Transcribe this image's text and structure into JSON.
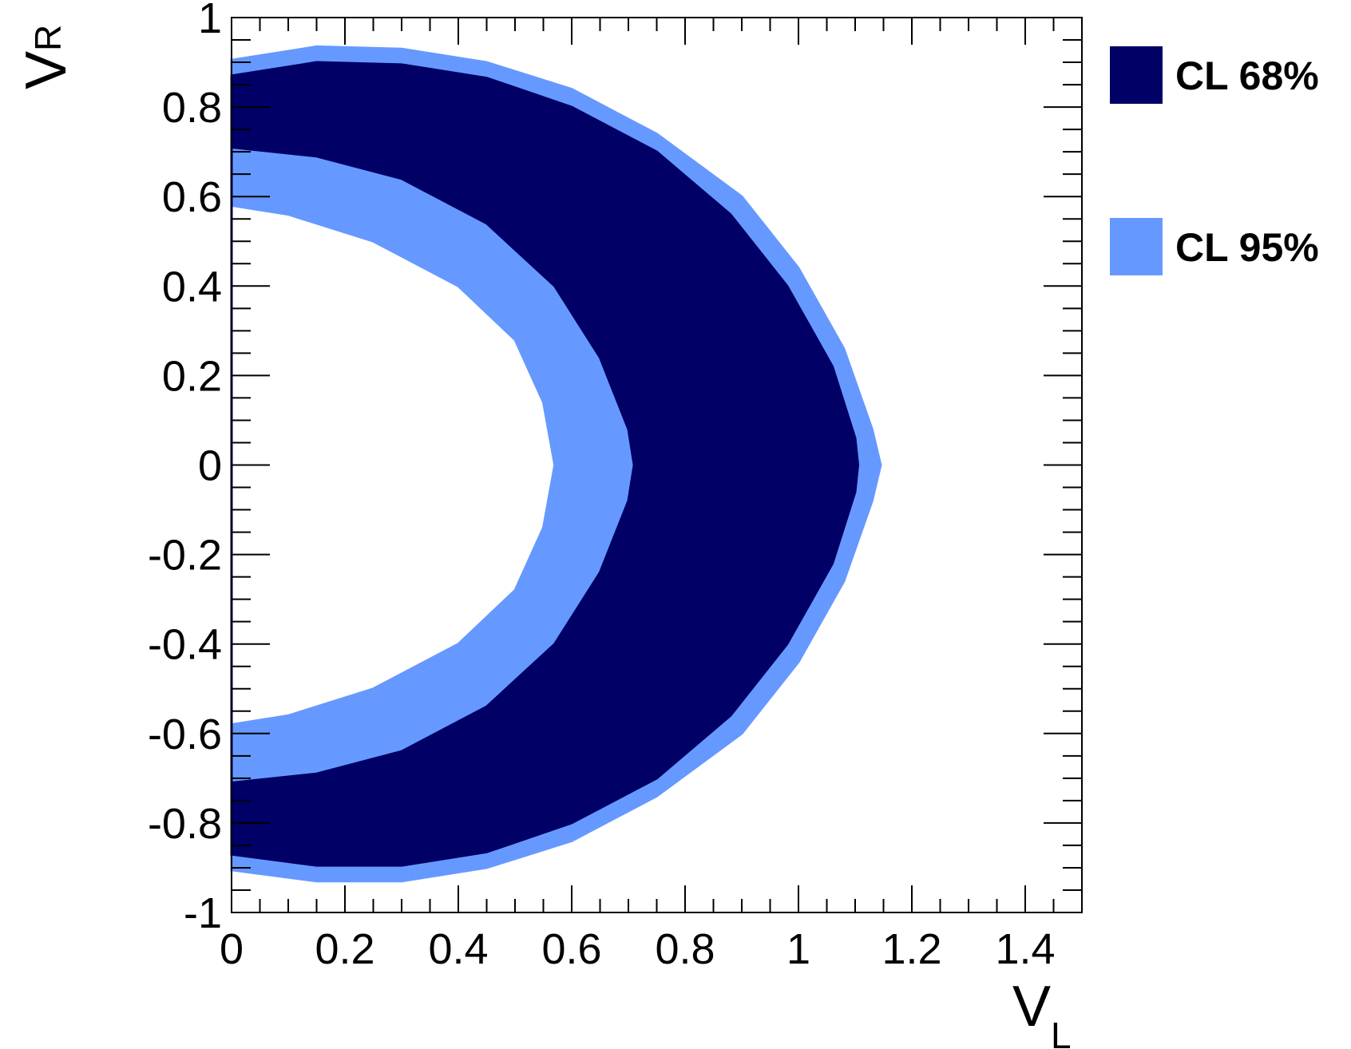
{
  "chart_data": {
    "type": "area",
    "xlabel": "V",
    "xlabel_sub": "L",
    "ylabel": "V",
    "ylabel_sub": "R",
    "xlim": [
      0,
      1.5
    ],
    "ylim": [
      -1,
      1
    ],
    "x_ticks": [
      0,
      0.2,
      0.4,
      0.6,
      0.8,
      1,
      1.2,
      1.4
    ],
    "x_tick_labels": [
      "0",
      "0.2",
      "0.4",
      "0.6",
      "0.8",
      "1",
      "1.2",
      "1.4"
    ],
    "y_ticks": [
      -1,
      -0.8,
      -0.6,
      -0.4,
      -0.2,
      0,
      0.2,
      0.4,
      0.6,
      0.8,
      1
    ],
    "y_tick_labels": [
      "-1",
      "-0.8",
      "-0.6",
      "-0.4",
      "-0.2",
      "0",
      "0.2",
      "0.4",
      "0.6",
      "0.8",
      "1"
    ],
    "grid": false,
    "legend_position": "right",
    "series": [
      {
        "name": "CL 95%",
        "color": "#6699ff",
        "outer_boundary": [
          [
            0,
            0.905
          ],
          [
            0.15,
            0.935
          ],
          [
            0.3,
            0.93
          ],
          [
            0.45,
            0.9
          ],
          [
            0.6,
            0.84
          ],
          [
            0.75,
            0.74
          ],
          [
            0.9,
            0.6
          ],
          [
            1.0,
            0.44
          ],
          [
            1.08,
            0.26
          ],
          [
            1.13,
            0.08
          ],
          [
            1.145,
            0.0
          ],
          [
            1.13,
            -0.08
          ],
          [
            1.08,
            -0.26
          ],
          [
            1.0,
            -0.44
          ],
          [
            0.9,
            -0.6
          ],
          [
            0.75,
            -0.74
          ],
          [
            0.6,
            -0.84
          ],
          [
            0.45,
            -0.9
          ],
          [
            0.3,
            -0.93
          ],
          [
            0.15,
            -0.93
          ],
          [
            0,
            -0.905
          ]
        ],
        "inner_boundary": [
          [
            0,
            0.58
          ],
          [
            0.1,
            0.56
          ],
          [
            0.25,
            0.5
          ],
          [
            0.4,
            0.4
          ],
          [
            0.5,
            0.28
          ],
          [
            0.55,
            0.14
          ],
          [
            0.57,
            0.0
          ],
          [
            0.55,
            -0.14
          ],
          [
            0.5,
            -0.28
          ],
          [
            0.4,
            -0.4
          ],
          [
            0.25,
            -0.5
          ],
          [
            0.1,
            -0.56
          ],
          [
            0,
            -0.58
          ]
        ]
      },
      {
        "name": "CL 68%",
        "color": "#000066",
        "outer_boundary": [
          [
            0,
            0.87
          ],
          [
            0.15,
            0.9
          ],
          [
            0.3,
            0.895
          ],
          [
            0.45,
            0.865
          ],
          [
            0.6,
            0.8
          ],
          [
            0.75,
            0.7
          ],
          [
            0.88,
            0.56
          ],
          [
            0.98,
            0.4
          ],
          [
            1.06,
            0.22
          ],
          [
            1.1,
            0.06
          ],
          [
            1.105,
            0.0
          ],
          [
            1.1,
            -0.06
          ],
          [
            1.06,
            -0.22
          ],
          [
            0.98,
            -0.4
          ],
          [
            0.88,
            -0.56
          ],
          [
            0.75,
            -0.7
          ],
          [
            0.6,
            -0.8
          ],
          [
            0.45,
            -0.865
          ],
          [
            0.3,
            -0.895
          ],
          [
            0.15,
            -0.895
          ],
          [
            0,
            -0.87
          ]
        ],
        "inner_boundary": [
          [
            0,
            0.71
          ],
          [
            0.15,
            0.69
          ],
          [
            0.3,
            0.64
          ],
          [
            0.45,
            0.54
          ],
          [
            0.57,
            0.4
          ],
          [
            0.65,
            0.24
          ],
          [
            0.7,
            0.08
          ],
          [
            0.71,
            0.0
          ],
          [
            0.7,
            -0.08
          ],
          [
            0.65,
            -0.24
          ],
          [
            0.57,
            -0.4
          ],
          [
            0.45,
            -0.54
          ],
          [
            0.3,
            -0.64
          ],
          [
            0.15,
            -0.69
          ],
          [
            0,
            -0.71
          ]
        ]
      }
    ],
    "legend": [
      {
        "label": "CL 68%",
        "color": "#000066"
      },
      {
        "label": "CL 95%",
        "color": "#6699ff"
      }
    ]
  }
}
